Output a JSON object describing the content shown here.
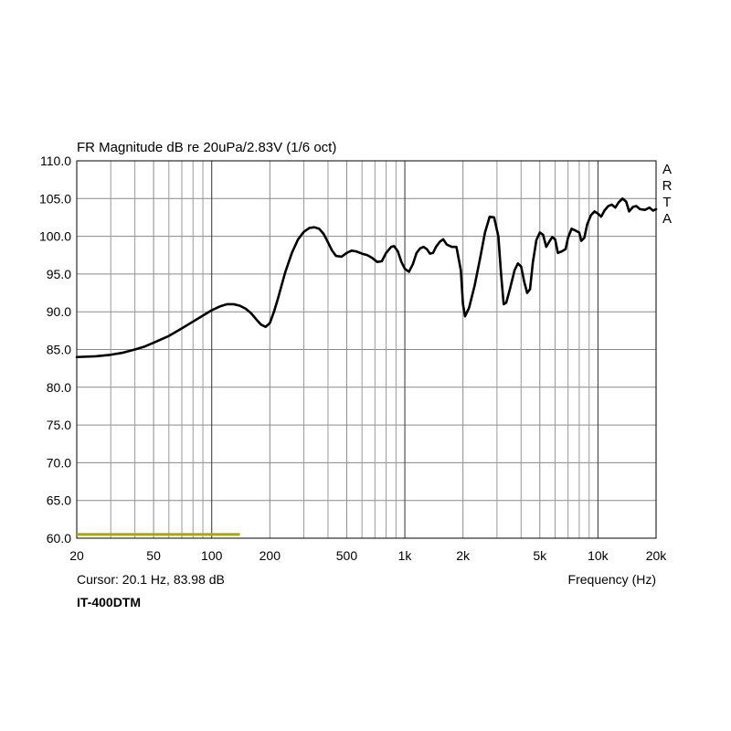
{
  "chart_data": {
    "type": "line",
    "title": "FR Magnitude dB re 20uPa/2.83V (1/6 oct)",
    "xlabel": "Frequency (Hz)",
    "ylabel": "",
    "x_scale": "log",
    "xlim": [
      20,
      20000
    ],
    "ylim": [
      60,
      110
    ],
    "grid": true,
    "yticks": [
      {
        "value": 110,
        "label": "110.0"
      },
      {
        "value": 105,
        "label": "105.0"
      },
      {
        "value": 100,
        "label": "100.0"
      },
      {
        "value": 95,
        "label": "95.0"
      },
      {
        "value": 90,
        "label": "90.0"
      },
      {
        "value": 85,
        "label": "85.0"
      },
      {
        "value": 80,
        "label": "80.0"
      },
      {
        "value": 75,
        "label": "75.0"
      },
      {
        "value": 70,
        "label": "70.0"
      },
      {
        "value": 65,
        "label": "65.0"
      },
      {
        "value": 60,
        "label": "60.0"
      }
    ],
    "xticks": [
      {
        "value": 20,
        "label": "20"
      },
      {
        "value": 50,
        "label": "50"
      },
      {
        "value": 100,
        "label": "100"
      },
      {
        "value": 200,
        "label": "200"
      },
      {
        "value": 500,
        "label": "500"
      },
      {
        "value": 1000,
        "label": "1k"
      },
      {
        "value": 2000,
        "label": "2k"
      },
      {
        "value": 5000,
        "label": "5k"
      },
      {
        "value": 10000,
        "label": "10k"
      },
      {
        "value": 20000,
        "label": "20k"
      }
    ],
    "minor_x_gridlines": [
      30,
      40,
      60,
      70,
      80,
      90,
      300,
      400,
      600,
      700,
      800,
      900,
      3000,
      4000,
      6000,
      7000,
      8000,
      9000
    ],
    "series": [
      {
        "color": "#000000",
        "points": [
          [
            20,
            84.0
          ],
          [
            25,
            84.1
          ],
          [
            30,
            84.3
          ],
          [
            35,
            84.6
          ],
          [
            40,
            85.0
          ],
          [
            45,
            85.4
          ],
          [
            50,
            85.9
          ],
          [
            60,
            86.8
          ],
          [
            70,
            87.8
          ],
          [
            80,
            88.7
          ],
          [
            90,
            89.5
          ],
          [
            100,
            90.2
          ],
          [
            110,
            90.7
          ],
          [
            120,
            91.0
          ],
          [
            130,
            91.0
          ],
          [
            140,
            90.8
          ],
          [
            150,
            90.4
          ],
          [
            160,
            89.8
          ],
          [
            170,
            89.0
          ],
          [
            180,
            88.3
          ],
          [
            190,
            88.0
          ],
          [
            200,
            88.5
          ],
          [
            210,
            90.0
          ],
          [
            220,
            91.7
          ],
          [
            230,
            93.5
          ],
          [
            240,
            95.2
          ],
          [
            260,
            97.8
          ],
          [
            280,
            99.6
          ],
          [
            300,
            100.6
          ],
          [
            320,
            101.1
          ],
          [
            340,
            101.2
          ],
          [
            360,
            101.0
          ],
          [
            380,
            100.3
          ],
          [
            400,
            99.2
          ],
          [
            420,
            98.1
          ],
          [
            440,
            97.4
          ],
          [
            470,
            97.3
          ],
          [
            500,
            97.8
          ],
          [
            530,
            98.1
          ],
          [
            560,
            98.0
          ],
          [
            600,
            97.7
          ],
          [
            640,
            97.5
          ],
          [
            680,
            97.1
          ],
          [
            720,
            96.6
          ],
          [
            760,
            96.7
          ],
          [
            800,
            97.8
          ],
          [
            850,
            98.6
          ],
          [
            880,
            98.7
          ],
          [
            920,
            98.0
          ],
          [
            960,
            96.6
          ],
          [
            1000,
            95.7
          ],
          [
            1050,
            95.3
          ],
          [
            1100,
            96.3
          ],
          [
            1150,
            97.8
          ],
          [
            1200,
            98.4
          ],
          [
            1250,
            98.6
          ],
          [
            1300,
            98.3
          ],
          [
            1350,
            97.7
          ],
          [
            1400,
            97.8
          ],
          [
            1450,
            98.6
          ],
          [
            1520,
            99.3
          ],
          [
            1580,
            99.6
          ],
          [
            1650,
            98.9
          ],
          [
            1750,
            98.6
          ],
          [
            1850,
            98.6
          ],
          [
            1950,
            95.5
          ],
          [
            2000,
            91.0
          ],
          [
            2050,
            89.4
          ],
          [
            2150,
            90.5
          ],
          [
            2300,
            93.5
          ],
          [
            2450,
            97.0
          ],
          [
            2600,
            100.5
          ],
          [
            2750,
            102.6
          ],
          [
            2900,
            102.5
          ],
          [
            3050,
            100.0
          ],
          [
            3150,
            95.0
          ],
          [
            3250,
            91.0
          ],
          [
            3350,
            91.2
          ],
          [
            3500,
            93.0
          ],
          [
            3700,
            95.5
          ],
          [
            3850,
            96.4
          ],
          [
            4000,
            96.0
          ],
          [
            4150,
            94.0
          ],
          [
            4300,
            92.5
          ],
          [
            4450,
            93.0
          ],
          [
            4600,
            96.5
          ],
          [
            4800,
            99.5
          ],
          [
            5000,
            100.5
          ],
          [
            5200,
            100.2
          ],
          [
            5400,
            98.6
          ],
          [
            5600,
            99.3
          ],
          [
            5800,
            99.9
          ],
          [
            6000,
            99.6
          ],
          [
            6200,
            97.8
          ],
          [
            6500,
            98.0
          ],
          [
            6800,
            98.3
          ],
          [
            7000,
            99.8
          ],
          [
            7300,
            101.0
          ],
          [
            7600,
            100.8
          ],
          [
            8000,
            100.5
          ],
          [
            8200,
            99.4
          ],
          [
            8500,
            99.8
          ],
          [
            8800,
            101.6
          ],
          [
            9200,
            102.8
          ],
          [
            9600,
            103.3
          ],
          [
            10000,
            103.0
          ],
          [
            10400,
            102.6
          ],
          [
            10800,
            103.4
          ],
          [
            11300,
            104.0
          ],
          [
            11800,
            104.2
          ],
          [
            12300,
            103.8
          ],
          [
            12800,
            104.5
          ],
          [
            13400,
            105.0
          ],
          [
            14000,
            104.6
          ],
          [
            14500,
            103.3
          ],
          [
            15200,
            103.9
          ],
          [
            15800,
            104.0
          ],
          [
            16500,
            103.6
          ],
          [
            17500,
            103.5
          ],
          [
            18500,
            103.8
          ],
          [
            19300,
            103.4
          ],
          [
            20000,
            103.6
          ]
        ]
      }
    ],
    "reference_line": {
      "x_start": 20,
      "x_end": 140,
      "y": 60.5,
      "color": "#a8a800"
    }
  },
  "cursor_text": "Cursor: 20.1 Hz, 83.98 dB",
  "device_label": "IT-400DTM",
  "brand_letters": [
    "A",
    "R",
    "T",
    "A"
  ]
}
